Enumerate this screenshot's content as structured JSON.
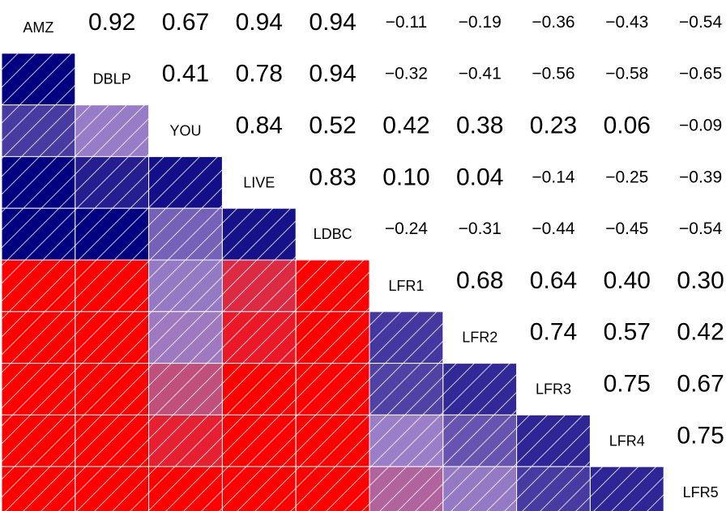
{
  "chart_data": {
    "type": "heatmap",
    "variables": [
      "AMZ",
      "DBLP",
      "YOU",
      "LIVE",
      "LDBC",
      "LFR1",
      "LFR2",
      "LFR3",
      "LFR4",
      "LFR5"
    ],
    "matrix": [
      [
        null,
        0.92,
        0.67,
        0.94,
        0.94,
        -0.11,
        -0.19,
        -0.36,
        -0.43,
        -0.54
      ],
      [
        0.92,
        null,
        0.41,
        0.78,
        0.94,
        -0.32,
        -0.41,
        -0.56,
        -0.58,
        -0.65
      ],
      [
        0.67,
        0.41,
        null,
        0.84,
        0.52,
        0.42,
        0.38,
        0.23,
        0.06,
        -0.09
      ],
      [
        0.94,
        0.78,
        0.84,
        null,
        0.83,
        0.1,
        0.04,
        -0.14,
        -0.25,
        -0.39
      ],
      [
        0.94,
        0.94,
        0.52,
        0.83,
        null,
        -0.24,
        -0.31,
        -0.44,
        -0.45,
        -0.54
      ],
      [
        -0.11,
        -0.32,
        0.42,
        0.1,
        -0.24,
        null,
        0.68,
        0.64,
        0.4,
        0.3
      ],
      [
        -0.19,
        -0.41,
        0.38,
        0.04,
        -0.31,
        0.68,
        null,
        0.74,
        0.57,
        0.42
      ],
      [
        -0.36,
        -0.56,
        0.23,
        -0.14,
        -0.44,
        0.64,
        0.74,
        null,
        0.75,
        0.67
      ],
      [
        -0.43,
        -0.58,
        0.06,
        -0.25,
        -0.45,
        0.4,
        0.57,
        0.75,
        null,
        0.75
      ],
      [
        -0.54,
        -0.65,
        -0.09,
        -0.39,
        -0.54,
        0.3,
        0.42,
        0.67,
        0.75,
        null
      ]
    ],
    "upper_triangle": "numbers",
    "lower_triangle": "colored-hatched-squares",
    "color_scale": {
      "positive": "#000080",
      "mid": "#9a7fc8",
      "negative": "#ff0000"
    },
    "grid": false,
    "legend": "none"
  }
}
